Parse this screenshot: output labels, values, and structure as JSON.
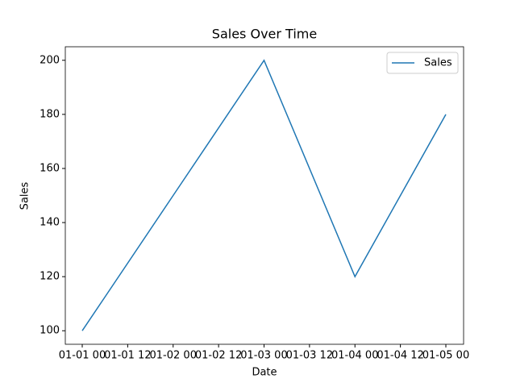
{
  "chart_data": {
    "type": "line",
    "title": "Sales Over Time",
    "x_label": "Date",
    "y_label": "Sales",
    "x": [
      "01-01 00",
      "01-02 00",
      "01-03 00",
      "01-04 00",
      "01-05 00"
    ],
    "series": [
      {
        "name": "Sales",
        "color": "#1f77b4",
        "values": [
          100,
          150,
          200,
          120,
          180
        ]
      }
    ],
    "xticks": [
      "01-01 00",
      "01-01 12",
      "01-02 00",
      "01-02 12",
      "01-03 00",
      "01-03 12",
      "01-04 00",
      "01-04 12",
      "01-05 00"
    ],
    "ylim": [
      95,
      205
    ],
    "yticks": [
      100,
      120,
      140,
      160,
      180,
      200
    ],
    "legend": "upper right"
  }
}
